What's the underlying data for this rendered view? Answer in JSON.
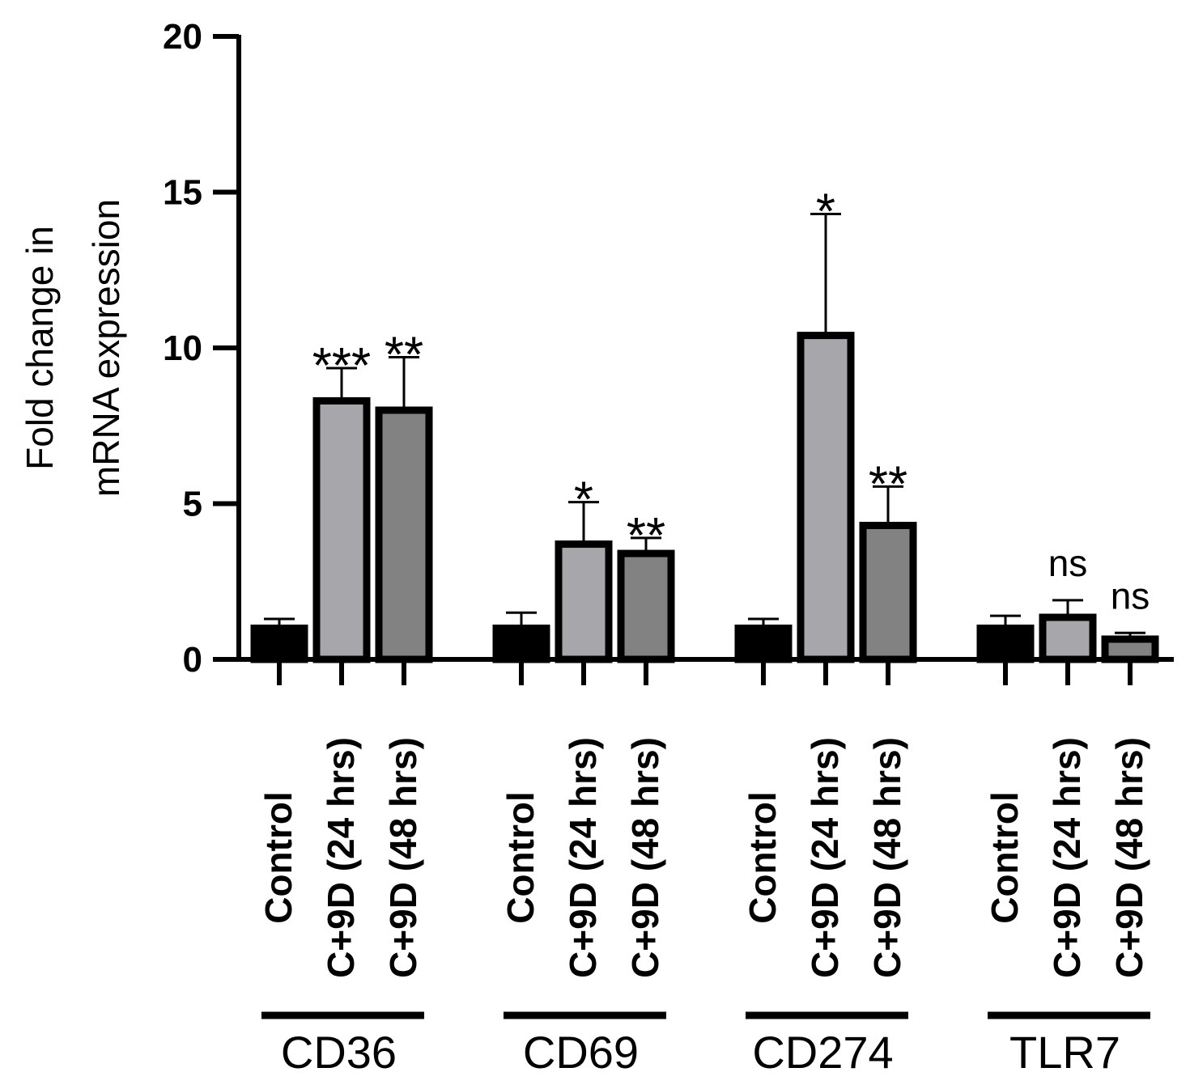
{
  "chart_data": {
    "type": "bar",
    "ylabel_lines": [
      "Fold change in",
      "mRNA expression"
    ],
    "ylim": [
      0,
      20
    ],
    "yticks": [
      0,
      5,
      10,
      15,
      20
    ],
    "grid": false,
    "legend": "none",
    "conditions": [
      {
        "label": "Control",
        "color": "#000000"
      },
      {
        "label": "C+9D (24 hrs)",
        "color": "#a7a6ab"
      },
      {
        "label": "C+9D (48 hrs)",
        "color": "#828282"
      }
    ],
    "groups": [
      {
        "name": "CD36",
        "values": [
          1.0,
          8.3,
          8.0
        ],
        "errors": [
          0.3,
          1.05,
          1.7
        ],
        "significance": [
          "",
          "***",
          "**"
        ]
      },
      {
        "name": "CD69",
        "values": [
          1.0,
          3.7,
          3.4
        ],
        "errors": [
          0.5,
          1.35,
          0.5
        ],
        "significance": [
          "",
          "*",
          "**"
        ]
      },
      {
        "name": "CD274",
        "values": [
          1.0,
          10.4,
          4.3
        ],
        "errors": [
          0.3,
          3.9,
          1.25
        ],
        "significance": [
          "",
          "*",
          "**"
        ]
      },
      {
        "name": "TLR7",
        "values": [
          1.0,
          1.35,
          0.65
        ],
        "errors": [
          0.4,
          0.55,
          0.2
        ],
        "significance": [
          "",
          "ns",
          "ns"
        ]
      }
    ]
  }
}
